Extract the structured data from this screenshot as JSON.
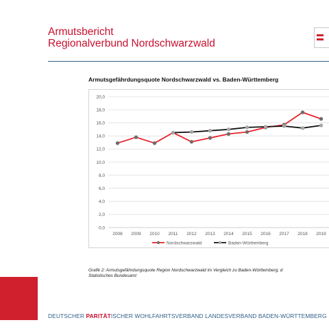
{
  "header": {
    "title_line1": "Armutsbericht",
    "title_line2": "Regionalverbund  Nordschwarzwald",
    "accent_color": "#c8102e"
  },
  "chart_data": {
    "type": "line",
    "title": "Armutsgefährdungsquote Nordschwarzwald vs. Baden-Württemberg",
    "x": [
      "2008",
      "2009",
      "2010",
      "2011",
      "2012",
      "2013",
      "2014",
      "2015",
      "2016",
      "2017",
      "2018",
      "2019"
    ],
    "yticks": [
      "0,0",
      "2,0",
      "4,0",
      "6,0",
      "8,0",
      "10,0",
      "12,0",
      "14,0",
      "16,0",
      "18,0",
      "20,0"
    ],
    "ylim": [
      0,
      20
    ],
    "grid": true,
    "legend_position": "bottom",
    "series": [
      {
        "name": "Nordschwarzwald",
        "color": "#e8202a",
        "marker_color": "#6d6d6d",
        "values": [
          12.9,
          13.8,
          12.9,
          14.5,
          13.1,
          13.7,
          14.3,
          14.6,
          15.3,
          15.7,
          17.6,
          16.6
        ]
      },
      {
        "name": "Baden-Württemberg",
        "color": "#111111",
        "marker_color": "#a6a6a6",
        "values": [
          null,
          null,
          null,
          14.5,
          14.6,
          14.8,
          15.0,
          15.3,
          15.4,
          15.5,
          15.2,
          15.6
        ]
      }
    ]
  },
  "caption": {
    "line1": "Grafik 2: Armutsgefährdungsquote Region Nordschwarzwald im Vergleich zu Baden-Württemberg; d",
    "line2": "Statistisches Bundesamt"
  },
  "footer": {
    "part1": "DEUTSCHER ",
    "part2": "PARITÄT",
    "part3": "ISCHER  WOHLFAHRTSVERBAND LANDESVERBAND BADEN-WÜRTTEMBERG",
    "brand_color": "#2e5f8a"
  }
}
